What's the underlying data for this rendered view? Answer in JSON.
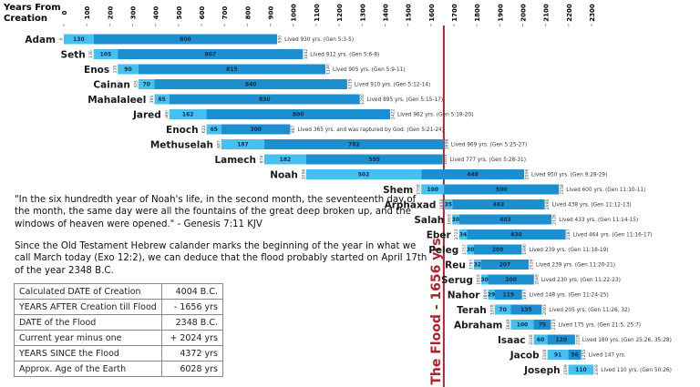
{
  "chart_data": {
    "type": "timeline",
    "xlabel": [
      "Years From",
      "Creation"
    ],
    "xlim": [
      0,
      2300
    ],
    "xticks": [
      0,
      100,
      200,
      300,
      400,
      500,
      600,
      700,
      800,
      900,
      1000,
      1100,
      1200,
      1300,
      1400,
      1500,
      1600,
      1700,
      1800,
      1900,
      2000,
      2100,
      2200,
      2300
    ],
    "colors": [
      "#45c0f0",
      "#1c8fd0"
    ],
    "flood_year": 1656,
    "flood_label": "The Flood - 1656 yrs",
    "flood_color": "#b3222a",
    "rows": [
      {
        "name": "Adam",
        "start": 0,
        "segments": [
          130,
          800
        ],
        "end": 930,
        "note": "Lived 930 yrs. (Gen 5:3-5)"
      },
      {
        "name": "Seth",
        "start": 130,
        "segments": [
          105,
          807
        ],
        "end": 1042,
        "note": "Lived 912 yrs. (Gen 5:6-8)"
      },
      {
        "name": "Enos",
        "start": 235,
        "segments": [
          90,
          815
        ],
        "end": 1140,
        "note": "Lived 905 yrs. (Gen 5:9-11)"
      },
      {
        "name": "Cainan",
        "start": 325,
        "segments": [
          70,
          840
        ],
        "end": 1235,
        "note": "Lived 910 yrs. (Gen 5:12-14)"
      },
      {
        "name": "Mahalaleel",
        "start": 395,
        "segments": [
          65,
          830
        ],
        "end": 1290,
        "note": "Lived 895 yrs. (Gen 5:15-17)"
      },
      {
        "name": "Jared",
        "start": 460,
        "segments": [
          162,
          800
        ],
        "end": 1422,
        "note": "Lived 962 yrs. (Gen 5:18-20)"
      },
      {
        "name": "Enoch",
        "start": 622,
        "segments": [
          65,
          300
        ],
        "end": 987,
        "note": "Lived 365 yrs. and was raptured by God. (Gen 5:21-24)"
      },
      {
        "name": "Methuselah",
        "start": 687,
        "segments": [
          187,
          782
        ],
        "end": 1656,
        "note": "Lived 969 yrs. (Gen 5:25-27)"
      },
      {
        "name": "Lamech",
        "start": 874,
        "segments": [
          182,
          595
        ],
        "end": 1651,
        "note": "Lived 777 yrs. (Gen 5:28-31)"
      },
      {
        "name": "Noah",
        "start": 1056,
        "segments": [
          502,
          448
        ],
        "end": 2006,
        "note": "Lived 950 yrs. (Gen 9:28-29)"
      },
      {
        "name": "Shem",
        "start": 1558,
        "segments": [
          100,
          500
        ],
        "end": 2158,
        "note": "Lived 600 yrs. (Gen 11:10-11)"
      },
      {
        "name": "Arphaxad",
        "start": 1658,
        "segments": [
          35,
          403
        ],
        "end": 2096,
        "note": "Lived 438 yrs. (Gen 11:12-13)"
      },
      {
        "name": "Salah",
        "start": 1693,
        "segments": [
          30,
          403
        ],
        "end": 2126,
        "note": "Lived 433 yrs. (Gen 11:14-15)"
      },
      {
        "name": "Eber",
        "start": 1723,
        "segments": [
          34,
          430
        ],
        "end": 2187,
        "note": "Lived 464 yrs. (Gen 11:16-17)"
      },
      {
        "name": "Peleg",
        "start": 1757,
        "segments": [
          30,
          209
        ],
        "end": 1996,
        "note": "Lived 239 yrs. (Gen 11:18-19)"
      },
      {
        "name": "Reu",
        "start": 1787,
        "segments": [
          32,
          207
        ],
        "end": 2026,
        "note": "Lived 239 yrs. (Gen 11:20-21)"
      },
      {
        "name": "Serug",
        "start": 1819,
        "segments": [
          30,
          200
        ],
        "end": 2049,
        "note": "Lived 230 yrs. (Gen 11:22-23)"
      },
      {
        "name": "Nahor",
        "start": 1849,
        "segments": [
          29,
          119
        ],
        "end": 1997,
        "note": "Lived 148 yrs. (Gen 11:24-25)"
      },
      {
        "name": "Terah",
        "start": 1878,
        "segments": [
          70,
          135
        ],
        "end": 2083,
        "note": "Lived 205 yrs. (Gen 11:26, 32)"
      },
      {
        "name": "Abraham",
        "start": 1948,
        "segments": [
          100,
          75
        ],
        "end": 2123,
        "note": "Lived 175 yrs. (Gen 21:5, 25:7)"
      },
      {
        "name": "Isaac",
        "start": 2048,
        "segments": [
          60,
          120
        ],
        "end": 2228,
        "note": "Lived 180 yrs. (Gen 25:26, 35:28)"
      },
      {
        "name": "Jacob",
        "start": 2108,
        "segments": [
          91,
          56
        ],
        "end": 2255,
        "note": "Lived 147 yrs."
      },
      {
        "name": "Joseph",
        "start": 2199,
        "segments": [
          110
        ],
        "end": 2309,
        "note": "Lived 110 yrs. (Gen 50:26)"
      }
    ]
  },
  "text": {
    "quote": "\"In the six hundredth year of Noah's life, in the second month, the seventeenth day of the month, the same day were all the fountains of the great deep broken up, and the windows of heaven were opened.\" - Genesis 7:11 KJV",
    "deduction": "Since the Old Testament Hebrew calander marks the beginning of the year in what we call March today (Exo 12:2), we can deduce that the flood probably started on April 17th of the year 2348 B.C."
  },
  "table": {
    "rows": [
      [
        "Calculated DATE of Creation",
        "4004 B.C."
      ],
      [
        "YEARS AFTER Creation till Flood",
        "- 1656 yrs"
      ],
      [
        "DATE of the Flood",
        "2348 B.C."
      ],
      [
        "Current year minus one",
        "+ 2024 yrs"
      ],
      [
        "YEARS SINCE the Flood",
        "4372 yrs"
      ],
      [
        "Approx. Age of the Earth",
        "6028 yrs"
      ]
    ]
  }
}
